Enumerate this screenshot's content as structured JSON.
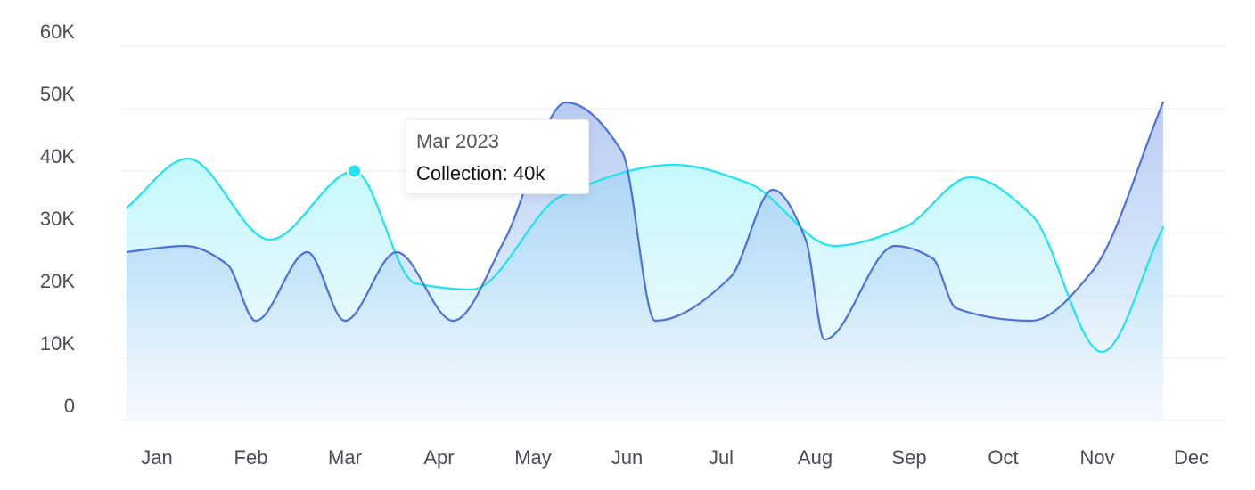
{
  "chart_data": {
    "type": "area",
    "title": "",
    "xlabel": "",
    "ylabel": "",
    "ylim": [
      0,
      60000
    ],
    "grid": true,
    "legend": "none",
    "x_ticks": [
      "Jan",
      "Feb",
      "Mar",
      "Apr",
      "May",
      "Jun",
      "Jul",
      "Aug",
      "Sep",
      "Oct",
      "Nov",
      "Dec"
    ],
    "y_ticks": [
      {
        "value": 0,
        "label": "0"
      },
      {
        "value": 10000,
        "label": "10K"
      },
      {
        "value": 20000,
        "label": "20K"
      },
      {
        "value": 30000,
        "label": "30K"
      },
      {
        "value": 40000,
        "label": "40K"
      },
      {
        "value": 50000,
        "label": "50K"
      },
      {
        "value": 60000,
        "label": "60K"
      }
    ],
    "series": [
      {
        "color": "#1fe3f0",
        "points": [
          [
            -0.33,
            34000
          ],
          [
            0.33,
            42000
          ],
          [
            1.2,
            29000
          ],
          [
            2.1,
            40000
          ],
          [
            2.75,
            22000
          ],
          [
            3.35,
            21000
          ],
          [
            4.3,
            36000
          ],
          [
            5.5,
            41000
          ],
          [
            6.3,
            38000
          ],
          [
            7.2,
            28000
          ],
          [
            7.95,
            31000
          ],
          [
            8.65,
            39000
          ],
          [
            9.3,
            33000
          ],
          [
            10.05,
            11000
          ],
          [
            10.7,
            31000
          ]
        ]
      },
      {
        "color": "#4a72d9",
        "points": [
          [
            -0.33,
            27000
          ],
          [
            0.3,
            28000
          ],
          [
            0.75,
            25000
          ],
          [
            1.05,
            16000
          ],
          [
            1.6,
            27000
          ],
          [
            2,
            16000
          ],
          [
            2.55,
            27000
          ],
          [
            3.15,
            16000
          ],
          [
            3.7,
            29000
          ],
          [
            4.35,
            51000
          ],
          [
            4.95,
            43000
          ],
          [
            5.3,
            16000
          ],
          [
            6.1,
            23000
          ],
          [
            6.55,
            37000
          ],
          [
            6.9,
            29000
          ],
          [
            7.1,
            13000
          ],
          [
            7.85,
            28000
          ],
          [
            8.25,
            26000
          ],
          [
            8.5,
            18000
          ],
          [
            9.3,
            16000
          ],
          [
            9.95,
            24000
          ],
          [
            10.7,
            51000
          ]
        ]
      }
    ],
    "tooltip": {
      "title": "Mar 2023",
      "label": "Collection",
      "value": "40k",
      "x": 2.1,
      "y": 40000,
      "marker_color": "#1fe3f0"
    }
  }
}
